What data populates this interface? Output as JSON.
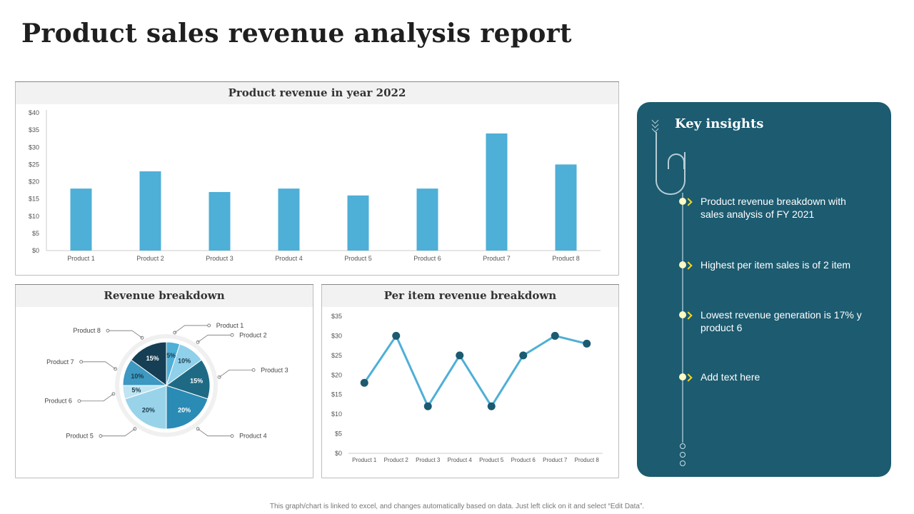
{
  "page": {
    "title": "Product sales revenue analysis report",
    "footer": "This graph/chart is linked to excel, and changes automatically based on data. Just left click on it and select “Edit Data”."
  },
  "colors": {
    "bar": "#4eafd7",
    "line": "#4eafd7",
    "marker": "#1b5a70",
    "insights_bg": "#1c5b70",
    "bullet": "#fff9c4",
    "arrow": "#f5d928"
  },
  "chart_data": [
    {
      "type": "bar",
      "title": "Product revenue in year 2022",
      "categories": [
        "Product 1",
        "Product 2",
        "Product 3",
        "Product 4",
        "Product 5",
        "Product 6",
        "Product 7",
        "Product 8"
      ],
      "values": [
        18,
        23,
        17,
        18,
        16,
        18,
        34,
        25
      ],
      "yticks": [
        "$0",
        "$5",
        "$10",
        "$15",
        "$20",
        "$25",
        "$30",
        "$35",
        "$40"
      ],
      "ylim": [
        0,
        40
      ],
      "grid": false
    },
    {
      "type": "pie",
      "title": "Revenue breakdown",
      "slices": [
        {
          "label": "Product 1",
          "value": 5,
          "text": "5%",
          "color": "#4eafd7",
          "text_color": "#1b3a4b"
        },
        {
          "label": "Product 2",
          "value": 10,
          "text": "10%",
          "color": "#8fd0ea",
          "text_color": "#1b3a4b"
        },
        {
          "label": "Product 3",
          "value": 15,
          "text": "15%",
          "color": "#1e6a85",
          "text_color": "#ffffff"
        },
        {
          "label": "Product 4",
          "value": 20,
          "text": "20%",
          "color": "#2a8bb5",
          "text_color": "#ffffff"
        },
        {
          "label": "Product 5",
          "value": 20,
          "text": "20%",
          "color": "#99d3ea",
          "text_color": "#1b3a4b"
        },
        {
          "label": "Product 6",
          "value": 5,
          "text": "5%",
          "color": "#bfe4f3",
          "text_color": "#1b3a4b"
        },
        {
          "label": "Product 7",
          "value": 10,
          "text": "10%",
          "color": "#3d98c2",
          "text_color": "#1b3a4b"
        },
        {
          "label": "Product 8",
          "value": 15,
          "text": "15%",
          "color": "#163f55",
          "text_color": "#ffffff"
        }
      ]
    },
    {
      "type": "line",
      "title": "Per item revenue breakdown",
      "categories": [
        "Product 1",
        "Product 2",
        "Product 3",
        "Product 4",
        "Product 5",
        "Product 6",
        "Product 7",
        "Product 8"
      ],
      "values": [
        18,
        30,
        12,
        25,
        12,
        25,
        30,
        28
      ],
      "yticks": [
        "$0",
        "$5",
        "$10",
        "$15",
        "$20",
        "$25",
        "$30",
        "$35"
      ],
      "ylim": [
        0,
        35
      ],
      "grid": false
    }
  ],
  "insights": {
    "title": "Key insights",
    "items": [
      "Product revenue breakdown with sales analysis of FY 2021",
      "Highest per item sales is of 2 item",
      "Lowest revenue generation is 17% y product 6",
      "Add text here"
    ]
  }
}
